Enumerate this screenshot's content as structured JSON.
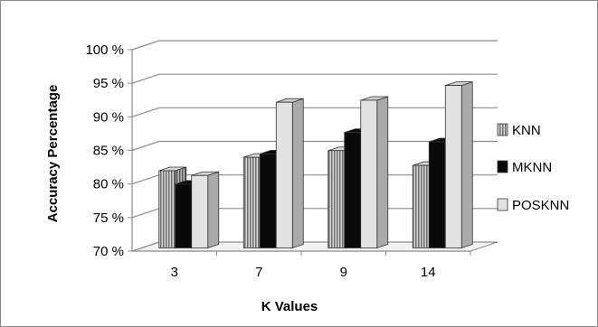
{
  "chart_data": {
    "type": "bar",
    "style": "3d-clustered-column",
    "categories": [
      "3",
      "7",
      "9",
      "14"
    ],
    "series": [
      {
        "name": "KNN",
        "values": [
          81.5,
          83.5,
          84.5,
          82.3
        ],
        "color": "#9a9a9a",
        "pattern": "vertical-stripes"
      },
      {
        "name": "MKNN",
        "values": [
          79.5,
          84.0,
          87.2,
          85.8
        ],
        "color": "#0a0a0a",
        "pattern": "solid"
      },
      {
        "name": "POSKNN",
        "values": [
          80.8,
          91.7,
          92.0,
          94.2
        ],
        "color": "#e2e2e2",
        "pattern": "solid"
      }
    ],
    "y_ticks": [
      "70 %",
      "75 %",
      "80 %",
      "85 %",
      "90 %",
      "95 %",
      "100 %"
    ],
    "ylim": [
      70,
      100
    ],
    "xlabel": "K Values",
    "ylabel": "Accuracy  Percentage",
    "grid": true,
    "legend_position": "right"
  }
}
